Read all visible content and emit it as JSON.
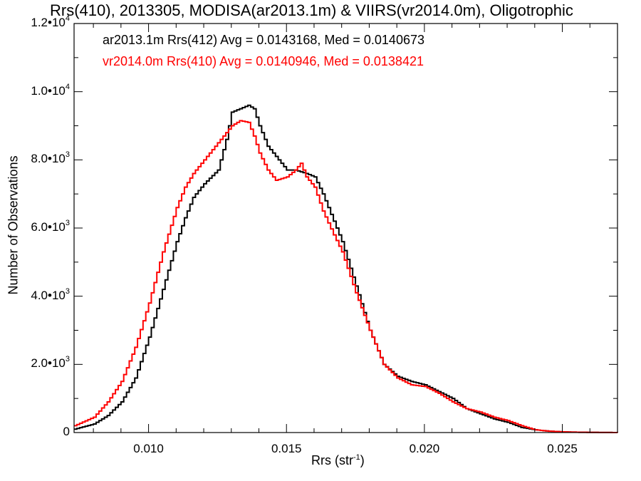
{
  "chart_data": {
    "type": "line",
    "title": "Rrs(410), 2013305, MODISA(ar2013.1m) & VIIRS(vr2014.0m), Oligotrophic",
    "xlabel_main": "Rrs (str",
    "xlabel_sup": "-1",
    "xlabel_tail": ")",
    "ylabel": "Number of Observations",
    "xlim": [
      0.0073,
      0.027
    ],
    "ylim": [
      0,
      12000
    ],
    "x_ticks": [
      {
        "value": 0.01,
        "label": "0.010"
      },
      {
        "value": 0.015,
        "label": "0.015"
      },
      {
        "value": 0.02,
        "label": "0.020"
      },
      {
        "value": 0.025,
        "label": "0.025"
      }
    ],
    "y_ticks": [
      {
        "value": 0,
        "label": "0",
        "exp": ""
      },
      {
        "value": 2000,
        "label": "2.0•10",
        "exp": "3"
      },
      {
        "value": 4000,
        "label": "4.0•10",
        "exp": "3"
      },
      {
        "value": 6000,
        "label": "6.0•10",
        "exp": "3"
      },
      {
        "value": 8000,
        "label": "8.0•10",
        "exp": "3"
      },
      {
        "value": 10000,
        "label": "1.0•10",
        "exp": "4"
      },
      {
        "value": 12000,
        "label": "1.2•10",
        "exp": "4"
      }
    ],
    "legend": [
      {
        "text": "ar2013.1m Rrs(412) Avg = 0.0143168, Med = 0.0140673",
        "color": "#000000"
      },
      {
        "text": "vr2014.0m Rrs(410) Avg = 0.0140946, Med = 0.0138421",
        "color": "#ff0000"
      }
    ],
    "series": [
      {
        "color": "#000000",
        "x": [
          0.0073,
          0.008,
          0.0085,
          0.009,
          0.0095,
          0.01,
          0.0105,
          0.011,
          0.0113,
          0.0116,
          0.012,
          0.0125,
          0.0128,
          0.013,
          0.0133,
          0.0136,
          0.0138,
          0.014,
          0.0143,
          0.0146,
          0.015,
          0.0153,
          0.0157,
          0.016,
          0.0163,
          0.0167,
          0.017,
          0.0175,
          0.018,
          0.0185,
          0.019,
          0.0195,
          0.02,
          0.0205,
          0.021,
          0.0215,
          0.022,
          0.0225,
          0.023,
          0.0235,
          0.024,
          0.0245,
          0.025,
          0.0255,
          0.026,
          0.027
        ],
        "y": [
          100,
          250,
          500,
          900,
          1600,
          2800,
          4200,
          5600,
          6300,
          6900,
          7300,
          7700,
          8600,
          9400,
          9500,
          9600,
          9500,
          9000,
          8400,
          8100,
          7700,
          7700,
          7600,
          7500,
          7000,
          6200,
          5600,
          4300,
          3000,
          2000,
          1650,
          1500,
          1400,
          1200,
          1000,
          700,
          550,
          400,
          300,
          150,
          80,
          40,
          20,
          10,
          5,
          0
        ]
      },
      {
        "color": "#ff0000",
        "x": [
          0.0073,
          0.008,
          0.0085,
          0.009,
          0.0095,
          0.01,
          0.0105,
          0.011,
          0.0113,
          0.0116,
          0.012,
          0.0125,
          0.0128,
          0.013,
          0.0133,
          0.0136,
          0.0138,
          0.014,
          0.0143,
          0.0146,
          0.015,
          0.0153,
          0.0155,
          0.0157,
          0.016,
          0.0163,
          0.0167,
          0.017,
          0.0175,
          0.018,
          0.0185,
          0.019,
          0.0195,
          0.02,
          0.0205,
          0.021,
          0.0215,
          0.022,
          0.0225,
          0.023,
          0.0235,
          0.024,
          0.0245,
          0.025,
          0.0255,
          0.026,
          0.027
        ],
        "y": [
          200,
          450,
          900,
          1500,
          2500,
          3800,
          5300,
          6600,
          7200,
          7600,
          8000,
          8500,
          8800,
          9000,
          9150,
          9100,
          8700,
          8200,
          7700,
          7400,
          7500,
          7700,
          7900,
          7500,
          7200,
          6500,
          5800,
          5300,
          4100,
          3000,
          2000,
          1600,
          1400,
          1350,
          1150,
          900,
          700,
          600,
          450,
          350,
          200,
          80,
          40,
          20,
          10,
          5,
          0
        ]
      }
    ]
  }
}
